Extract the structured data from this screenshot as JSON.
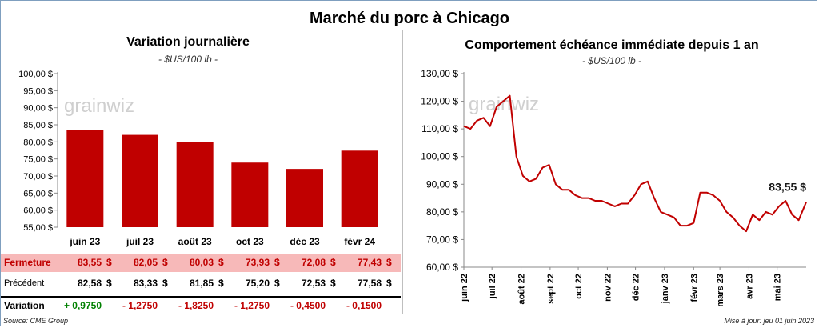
{
  "title": "Marché du porc à Chicago",
  "left_panel": {
    "subtitle": "Variation journalière",
    "unit": "- $US/100 lb -"
  },
  "right_panel": {
    "subtitle": "Comportement échéance immédiate depuis 1 an",
    "unit": "- $US/100 lb -",
    "last_value_label": "83,55 $"
  },
  "watermark": "grainwiz",
  "colors": {
    "bar": "#c00000",
    "line": "#c00000",
    "row_highlight": "#f7b9b9",
    "positive": "#008000",
    "negative": "#c00000"
  },
  "table": {
    "rows": [
      {
        "label": "Fermeture",
        "label_color": "#c00000",
        "values": [
          "83,55",
          "82,05",
          "80,03",
          "73,93",
          "72,08",
          "77,43"
        ],
        "suffix": "$"
      },
      {
        "label": "Précédent",
        "label_color": "#000000",
        "values": [
          "82,58",
          "83,33",
          "81,85",
          "75,20",
          "72,53",
          "77,58"
        ],
        "suffix": "$"
      },
      {
        "label": "Variation",
        "label_color": "#000000",
        "values": [
          "+ 0,9750",
          "- 1,2750",
          "- 1,8250",
          "- 1,2750",
          "- 0,4500",
          "- 0,1500"
        ],
        "suffix": ""
      }
    ]
  },
  "footer": {
    "source": "Source: CME Group",
    "updated": "Mise à jour: jeu 01 juin 2023"
  },
  "chart_data": [
    {
      "type": "bar",
      "categories": [
        "juin 23",
        "juil 23",
        "août 23",
        "oct 23",
        "déc 23",
        "févr 24"
      ],
      "values": [
        83.55,
        82.05,
        80.03,
        73.93,
        72.08,
        77.43
      ],
      "title": "Variation journalière",
      "ylim": [
        55,
        100
      ],
      "yticks": [
        "55,00 $",
        "60,00 $",
        "65,00 $",
        "70,00 $",
        "75,00 $",
        "80,00 $",
        "85,00 $",
        "90,00 $",
        "95,00 $",
        "100,00 $"
      ],
      "grid": false
    },
    {
      "type": "line",
      "title": "Comportement échéance immédiate depuis 1 an",
      "ylim": [
        60,
        130
      ],
      "yticks": [
        "60,00 $",
        "70,00 $",
        "80,00 $",
        "90,00 $",
        "100,00 $",
        "110,00 $",
        "120,00 $",
        "130,00 $"
      ],
      "xticks": [
        "juin 22",
        "juil 22",
        "août 22",
        "sept 22",
        "oct 22",
        "nov 22",
        "déc 22",
        "janv 23",
        "févr 23",
        "mars 23",
        "avr 23",
        "mai 23"
      ],
      "x": [
        "2022-06-01",
        "2022-06-08",
        "2022-06-15",
        "2022-06-22",
        "2022-06-29",
        "2022-07-06",
        "2022-07-13",
        "2022-07-20",
        "2022-07-27",
        "2022-08-03",
        "2022-08-10",
        "2022-08-17",
        "2022-08-24",
        "2022-08-31",
        "2022-09-07",
        "2022-09-14",
        "2022-09-21",
        "2022-09-28",
        "2022-10-05",
        "2022-10-12",
        "2022-10-19",
        "2022-10-26",
        "2022-11-02",
        "2022-11-09",
        "2022-11-16",
        "2022-11-23",
        "2022-11-30",
        "2022-12-07",
        "2022-12-14",
        "2022-12-21",
        "2022-12-28",
        "2023-01-04",
        "2023-01-11",
        "2023-01-18",
        "2023-01-25",
        "2023-02-01",
        "2023-02-08",
        "2023-02-15",
        "2023-02-22",
        "2023-03-01",
        "2023-03-08",
        "2023-03-15",
        "2023-03-22",
        "2023-03-29",
        "2023-04-05",
        "2023-04-12",
        "2023-04-19",
        "2023-04-26",
        "2023-05-03",
        "2023-05-10",
        "2023-05-17",
        "2023-05-24",
        "2023-06-01"
      ],
      "series": [
        {
          "values": [
            111.0,
            110.0,
            113.0,
            114.0,
            111.0,
            118.0,
            120.0,
            122.0,
            100.0,
            93.0,
            91.0,
            92.0,
            96.0,
            97.0,
            90.0,
            88.0,
            88.0,
            86.0,
            85.0,
            85.0,
            84.0,
            84.0,
            83.0,
            82.0,
            83.0,
            83.0,
            86.0,
            90.0,
            91.0,
            85.0,
            80.0,
            79.0,
            78.0,
            75.0,
            75.0,
            76.0,
            87.0,
            87.0,
            86.0,
            84.0,
            80.0,
            78.0,
            75.0,
            73.0,
            79.0,
            77.0,
            80.0,
            79.0,
            82.0,
            84.0,
            79.0,
            77.0,
            83.55
          ]
        }
      ],
      "grid": false
    }
  ]
}
